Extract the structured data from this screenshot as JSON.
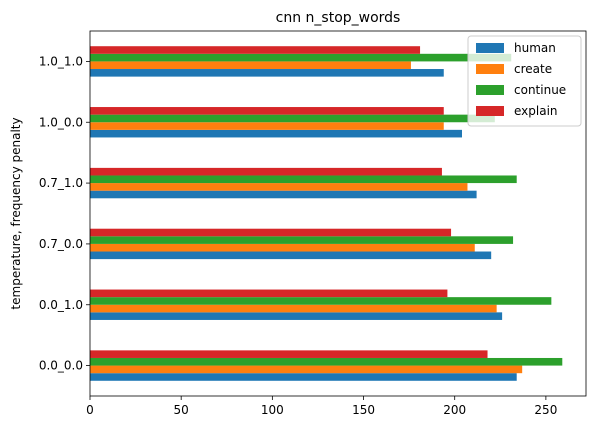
{
  "chart_data": {
    "type": "bar",
    "orientation": "horizontal",
    "title": "cnn n_stop_words",
    "xlabel": "",
    "ylabel": "temperature, frequency penalty",
    "categories": [
      "0.0_0.0",
      "0.0_1.0",
      "0.7_0.0",
      "0.7_1.0",
      "1.0_0.0",
      "1.0_1.0"
    ],
    "x_ticks": [
      0,
      50,
      100,
      150,
      200,
      250
    ],
    "xlim": [
      0,
      272
    ],
    "grid": false,
    "legend_position": "top-right",
    "series": [
      {
        "name": "human",
        "color": "#1f77b4",
        "values": [
          234,
          226,
          220,
          212,
          204,
          194
        ]
      },
      {
        "name": "create",
        "color": "#ff7f0e",
        "values": [
          237,
          223,
          211,
          207,
          194,
          176
        ]
      },
      {
        "name": "continue",
        "color": "#2ca02c",
        "values": [
          259,
          253,
          232,
          234,
          222,
          231
        ]
      },
      {
        "name": "explain",
        "color": "#d62728",
        "values": [
          218,
          196,
          198,
          193,
          194,
          181
        ]
      }
    ]
  }
}
